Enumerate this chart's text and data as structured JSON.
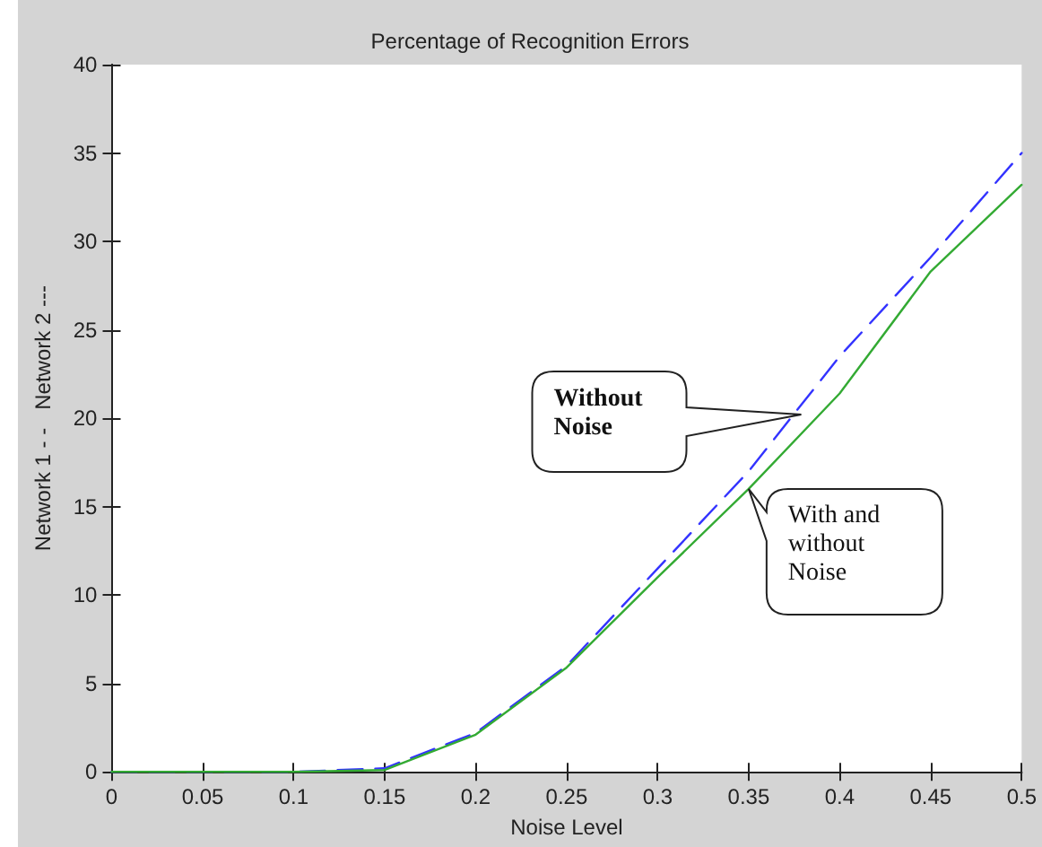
{
  "chart_data": {
    "type": "line",
    "title": "Percentage of Recognition Errors",
    "xlabel": "Noise Level",
    "ylabel": "Network 1 - -   Network 2 ---",
    "x": [
      0,
      0.05,
      0.1,
      0.15,
      0.2,
      0.25,
      0.3,
      0.35,
      0.4,
      0.45,
      0.5
    ],
    "series": [
      {
        "color": "#3333ff",
        "line_style": "dashed",
        "values": [
          0,
          0,
          0,
          0.2,
          2.2,
          6,
          11.5,
          17,
          23.5,
          29.1,
          35
        ]
      },
      {
        "color": "#33aa33",
        "line_style": "solid",
        "values": [
          0,
          0,
          0,
          0.1,
          2.1,
          5.9,
          11,
          16,
          21.4,
          28.3,
          33.2
        ]
      }
    ],
    "xlim": [
      0,
      0.5
    ],
    "xticks": [
      0,
      0.05,
      0.1,
      0.15,
      0.2,
      0.25,
      0.3,
      0.35,
      0.4,
      0.45,
      0.5
    ],
    "ylim": [
      0,
      40
    ],
    "yticks": [
      0,
      5,
      10,
      15,
      20,
      25,
      30,
      35,
      40
    ],
    "grid": false,
    "marker": "none",
    "annotations": [
      "Without Noise",
      {
        "text": "With and without Noise",
        "x": 0.35,
        "y": 16
      }
    ]
  }
}
